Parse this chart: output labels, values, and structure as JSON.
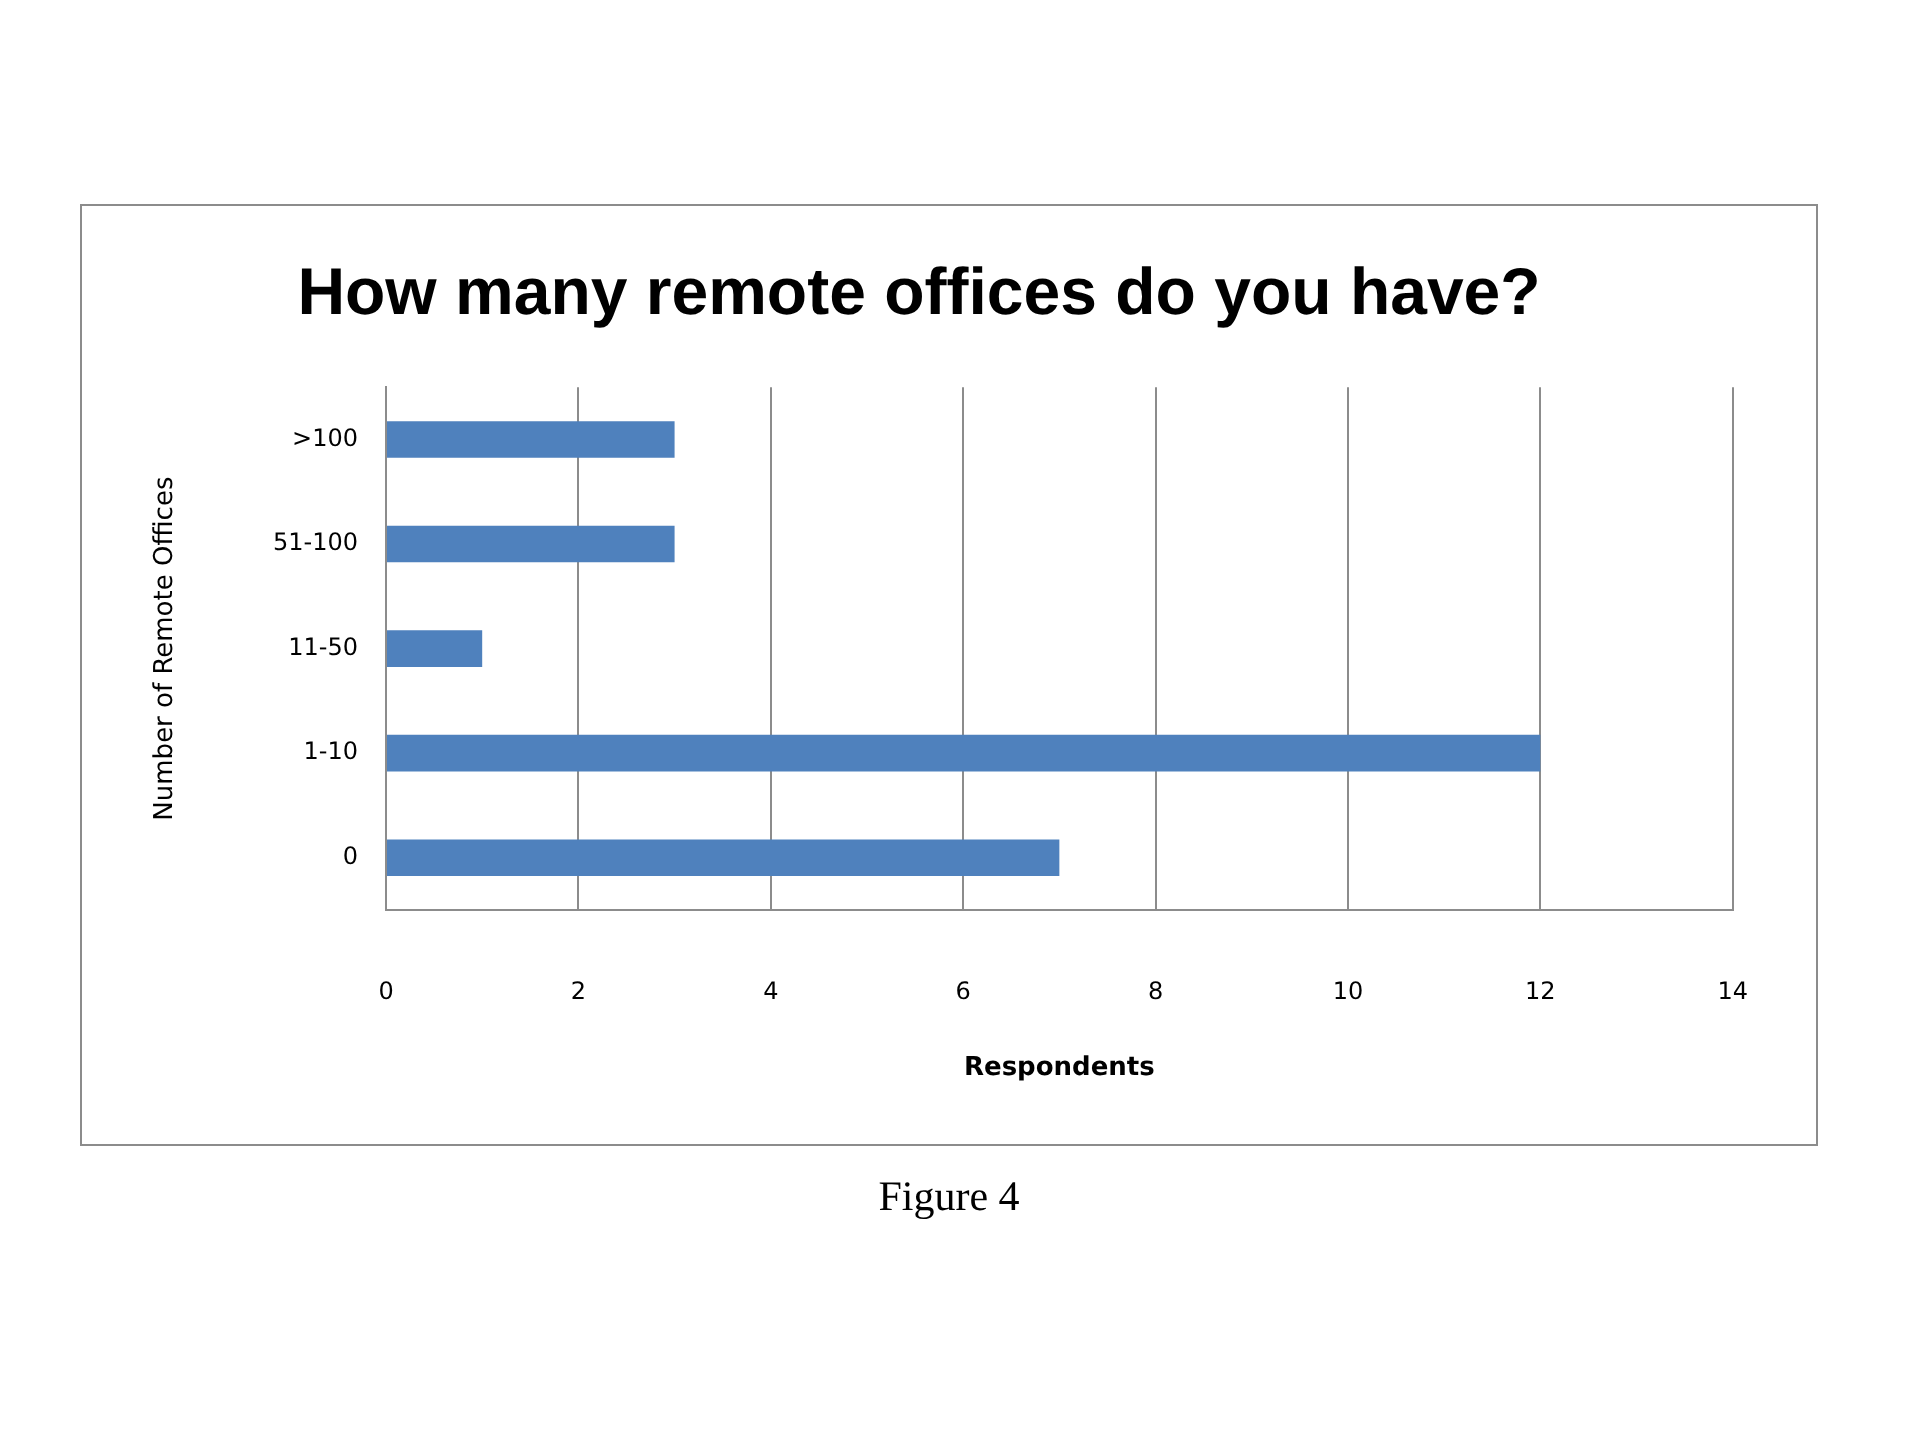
{
  "chart_data": {
    "type": "bar",
    "orientation": "horizontal",
    "title": "How many remote offices do you have?",
    "xlabel": "Respondents",
    "ylabel": "Number of Remote Offices",
    "categories": [
      ">100",
      "51-100",
      "11-50",
      "1-10",
      "0"
    ],
    "values": [
      3,
      3,
      1,
      12,
      7
    ],
    "color": "#4f81bd",
    "xlim": [
      0,
      14
    ],
    "xticks": [
      0,
      2,
      4,
      6,
      8,
      10,
      12,
      14
    ],
    "grid": "x",
    "annotations": [
      "Figure 4"
    ]
  }
}
